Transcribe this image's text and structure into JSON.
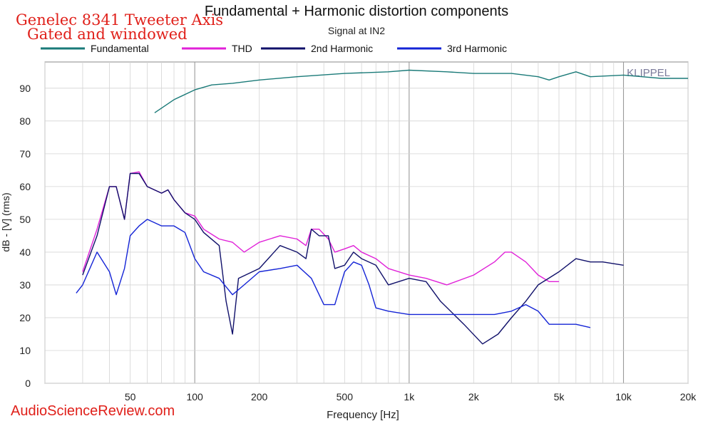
{
  "overlay": {
    "title_line1": "Genelec 8341 Tweeter Axis",
    "title_line2": "Gated and windowed",
    "watermark": "AudioScienceReview.com"
  },
  "chart_data": {
    "type": "line",
    "title": "Fundamental + Harmonic distortion components",
    "subtitle": "Signal at IN2",
    "xlabel": "Frequency [Hz]",
    "ylabel": "dB - [V]  (rms)",
    "x_scale": "log",
    "xlim": [
      20,
      20000
    ],
    "ylim": [
      0,
      98
    ],
    "x_ticks": [
      {
        "value": 50,
        "label": "50"
      },
      {
        "value": 100,
        "label": "100"
      },
      {
        "value": 200,
        "label": "200"
      },
      {
        "value": 500,
        "label": "500"
      },
      {
        "value": 1000,
        "label": "1k"
      },
      {
        "value": 2000,
        "label": "2k"
      },
      {
        "value": 5000,
        "label": "5k"
      },
      {
        "value": 10000,
        "label": "10k"
      },
      {
        "value": 20000,
        "label": "20k"
      }
    ],
    "y_ticks": [
      0,
      10,
      20,
      30,
      40,
      50,
      60,
      70,
      80,
      90
    ],
    "grid": true,
    "legend_position": "top",
    "annotation": "KLIPPEL",
    "series": [
      {
        "name": "Fundamental",
        "color": "#1a7a78",
        "points": [
          [
            65,
            82.5
          ],
          [
            80,
            86.5
          ],
          [
            100,
            89.5
          ],
          [
            120,
            91
          ],
          [
            150,
            91.5
          ],
          [
            200,
            92.5
          ],
          [
            300,
            93.5
          ],
          [
            500,
            94.5
          ],
          [
            800,
            95
          ],
          [
            1000,
            95.5
          ],
          [
            1500,
            95
          ],
          [
            2000,
            94.5
          ],
          [
            3000,
            94.5
          ],
          [
            4000,
            93.5
          ],
          [
            4500,
            92.5
          ],
          [
            5000,
            93.5
          ],
          [
            6000,
            95
          ],
          [
            7000,
            93.5
          ],
          [
            10000,
            94
          ],
          [
            15000,
            93
          ],
          [
            20000,
            93
          ]
        ]
      },
      {
        "name": "THD",
        "color": "#e020d8",
        "points": [
          [
            30,
            34
          ],
          [
            35,
            47
          ],
          [
            40,
            60
          ],
          [
            43,
            60
          ],
          [
            47,
            50
          ],
          [
            50,
            64
          ],
          [
            55,
            64.5
          ],
          [
            60,
            60
          ],
          [
            70,
            58
          ],
          [
            75,
            59
          ],
          [
            80,
            56
          ],
          [
            90,
            52
          ],
          [
            100,
            51
          ],
          [
            110,
            47
          ],
          [
            130,
            44
          ],
          [
            150,
            43
          ],
          [
            170,
            40
          ],
          [
            200,
            43
          ],
          [
            250,
            45
          ],
          [
            300,
            44
          ],
          [
            330,
            42
          ],
          [
            350,
            47
          ],
          [
            380,
            47
          ],
          [
            420,
            44
          ],
          [
            450,
            40
          ],
          [
            500,
            41
          ],
          [
            550,
            42
          ],
          [
            600,
            40
          ],
          [
            700,
            38
          ],
          [
            800,
            35
          ],
          [
            1000,
            33
          ],
          [
            1200,
            32
          ],
          [
            1500,
            30
          ],
          [
            2000,
            33
          ],
          [
            2500,
            37
          ],
          [
            2800,
            40
          ],
          [
            3000,
            40
          ],
          [
            3500,
            37
          ],
          [
            4000,
            33
          ],
          [
            4500,
            31
          ],
          [
            5000,
            31
          ]
        ]
      },
      {
        "name": "2nd Harmonic",
        "color": "#10106a",
        "points": [
          [
            30,
            33
          ],
          [
            35,
            45
          ],
          [
            40,
            60
          ],
          [
            43,
            60
          ],
          [
            47,
            50
          ],
          [
            50,
            64
          ],
          [
            55,
            64
          ],
          [
            60,
            60
          ],
          [
            70,
            58
          ],
          [
            75,
            59
          ],
          [
            80,
            56
          ],
          [
            90,
            52
          ],
          [
            100,
            50
          ],
          [
            110,
            46
          ],
          [
            130,
            42
          ],
          [
            140,
            25
          ],
          [
            150,
            15
          ],
          [
            160,
            32
          ],
          [
            200,
            35
          ],
          [
            250,
            42
          ],
          [
            300,
            40
          ],
          [
            330,
            38
          ],
          [
            350,
            47
          ],
          [
            380,
            45
          ],
          [
            420,
            45
          ],
          [
            450,
            35
          ],
          [
            500,
            36
          ],
          [
            550,
            40
          ],
          [
            600,
            38
          ],
          [
            700,
            36
          ],
          [
            800,
            30
          ],
          [
            1000,
            32
          ],
          [
            1200,
            31
          ],
          [
            1400,
            25
          ],
          [
            1800,
            18
          ],
          [
            2200,
            12
          ],
          [
            2600,
            15
          ],
          [
            3000,
            20
          ],
          [
            3500,
            25
          ],
          [
            4000,
            30
          ],
          [
            5000,
            34
          ],
          [
            6000,
            38
          ],
          [
            7000,
            37
          ],
          [
            8000,
            37
          ],
          [
            10000,
            36
          ]
        ]
      },
      {
        "name": "3rd Harmonic",
        "color": "#1424d6",
        "points": [
          [
            28,
            27.5
          ],
          [
            30,
            30
          ],
          [
            35,
            40
          ],
          [
            40,
            34
          ],
          [
            43,
            27
          ],
          [
            47,
            35
          ],
          [
            50,
            45
          ],
          [
            55,
            48
          ],
          [
            60,
            50
          ],
          [
            70,
            48
          ],
          [
            80,
            48
          ],
          [
            90,
            46
          ],
          [
            100,
            38
          ],
          [
            110,
            34
          ],
          [
            130,
            32
          ],
          [
            150,
            27
          ],
          [
            170,
            30
          ],
          [
            200,
            34
          ],
          [
            250,
            35
          ],
          [
            300,
            36
          ],
          [
            350,
            32
          ],
          [
            400,
            24
          ],
          [
            450,
            24
          ],
          [
            500,
            34
          ],
          [
            550,
            37
          ],
          [
            600,
            36
          ],
          [
            650,
            30
          ],
          [
            700,
            23
          ],
          [
            800,
            22
          ],
          [
            1000,
            21
          ],
          [
            1200,
            21
          ],
          [
            1500,
            21
          ],
          [
            2000,
            21
          ],
          [
            2500,
            21
          ],
          [
            3000,
            22
          ],
          [
            3500,
            24
          ],
          [
            4000,
            22
          ],
          [
            4500,
            18
          ],
          [
            5000,
            18
          ],
          [
            6000,
            18
          ],
          [
            7000,
            17
          ]
        ]
      }
    ]
  }
}
